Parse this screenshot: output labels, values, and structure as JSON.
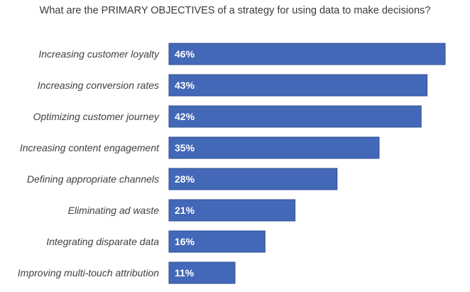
{
  "chart_data": {
    "type": "bar",
    "orientation": "horizontal",
    "title": "What are the PRIMARY OBJECTIVES of a strategy for using data to make decisions?",
    "categories": [
      "Increasing customer loyalty",
      "Increasing conversion rates",
      "Optimizing customer journey",
      "Increasing content engagement",
      "Defining appropriate channels",
      "Eliminating ad waste",
      "Integrating disparate data",
      "Improving multi-touch attribution"
    ],
    "values": [
      46,
      43,
      42,
      35,
      28,
      21,
      16,
      11
    ],
    "value_labels": [
      "46%",
      "43%",
      "42%",
      "35%",
      "28%",
      "21%",
      "16%",
      "11%"
    ],
    "unit": "%",
    "xlim": [
      0,
      46
    ],
    "grid": false,
    "legend": "none",
    "bar_color": "#4468b8",
    "label_color": "#ffffff"
  }
}
